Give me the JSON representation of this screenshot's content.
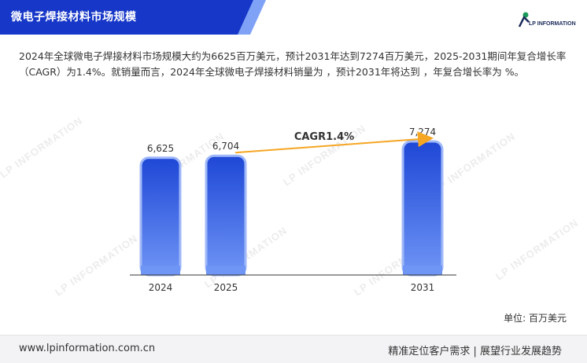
{
  "header": {
    "title": "微电子焊接材料市场规模"
  },
  "logo": {
    "text": "LP INFORMATION"
  },
  "description": "2024年全球微电子焊接材料市场规模大约为6625百万美元，预计2031年达到7274百万美元，2025-2031期间年复合增长率（CAGR）为1.4%。就销量而言，2024年全球微电子焊接材料销量为 ，预计2031年将达到 ，年复合增长率为 %。",
  "chart_data": {
    "type": "bar",
    "categories": [
      "2024",
      "2025",
      "2031"
    ],
    "values": [
      6625,
      6704,
      7274
    ],
    "value_labels": [
      "6,625",
      "6,704",
      "7,274"
    ],
    "annotation": "CAGR1.4%",
    "unit": "单位: 百万美元",
    "colors": {
      "bar_top": "#1e47d6",
      "bar_bottom": "#6f95f5",
      "arrow": "#f5a623"
    }
  },
  "footer": {
    "url": "www.lpinformation.com.cn",
    "slogan": "精准定位客户需求 | 展望行业发展趋势"
  },
  "colors": {
    "title_band": "#1637c8",
    "title_band_light": "#5d84f0"
  }
}
